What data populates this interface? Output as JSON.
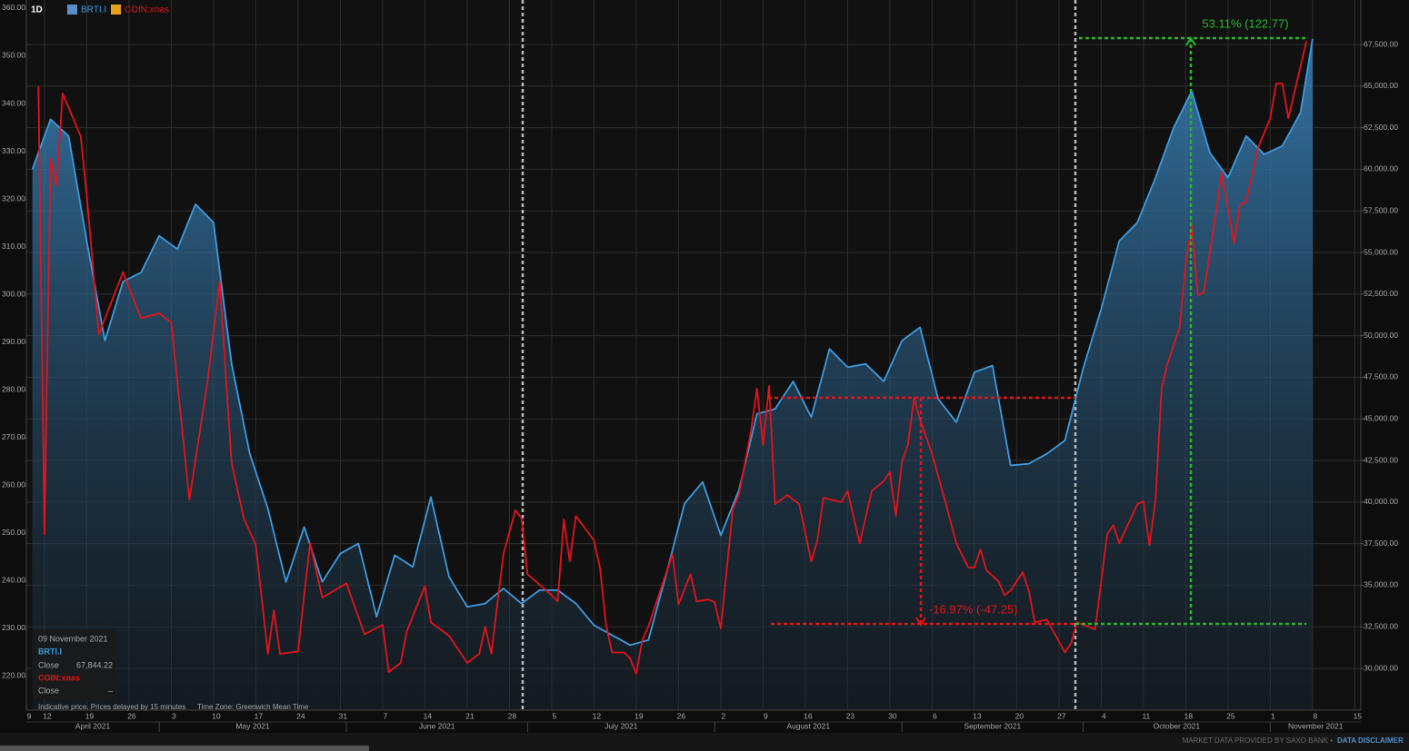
{
  "toolbar": {
    "interval": "1D"
  },
  "chart_data": {
    "type": "line",
    "xlim": [
      "2021-04-09",
      "2021-11-16"
    ],
    "ylim": [
      213,
      361.9
    ],
    "y2lim": [
      27490,
      70175
    ],
    "grid": true,
    "grid_axis": "y2",
    "yticks": [
      {
        "value": 220,
        "label": "220.00"
      },
      {
        "value": 230,
        "label": "230.00"
      },
      {
        "value": 240,
        "label": "240.00"
      },
      {
        "value": 250,
        "label": "250.00"
      },
      {
        "value": 260,
        "label": "260.00"
      },
      {
        "value": 270,
        "label": "270.00"
      },
      {
        "value": 280,
        "label": "280.00"
      },
      {
        "value": 290,
        "label": "290.00"
      },
      {
        "value": 300,
        "label": "300.00"
      },
      {
        "value": 310,
        "label": "310.00"
      },
      {
        "value": 320,
        "label": "320.00"
      },
      {
        "value": 330,
        "label": "330.00"
      },
      {
        "value": 340,
        "label": "340.00"
      },
      {
        "value": 350,
        "label": "350.00"
      },
      {
        "value": 360,
        "label": "360.00"
      }
    ],
    "y2ticks": [
      {
        "value": 30000,
        "label": "30,000.00"
      },
      {
        "value": 32500,
        "label": "32,500.00"
      },
      {
        "value": 35000,
        "label": "35,000.00"
      },
      {
        "value": 37500,
        "label": "37,500.00"
      },
      {
        "value": 40000,
        "label": "40,000.00"
      },
      {
        "value": 42500,
        "label": "42,500.00"
      },
      {
        "value": 45000,
        "label": "45,000.00"
      },
      {
        "value": 47500,
        "label": "47,500.00"
      },
      {
        "value": 50000,
        "label": "50,000.00"
      },
      {
        "value": 52500,
        "label": "52,500.00"
      },
      {
        "value": 55000,
        "label": "55,000.00"
      },
      {
        "value": 57500,
        "label": "57,500.00"
      },
      {
        "value": 60000,
        "label": "60,000.00"
      },
      {
        "value": 62500,
        "label": "62,500.00"
      },
      {
        "value": 65000,
        "label": "65,000.00"
      },
      {
        "value": 67500,
        "label": "67,500.00"
      }
    ],
    "xticks": [
      {
        "value": "2021-04-09",
        "label": "9"
      },
      {
        "value": "2021-04-12",
        "label": "12"
      },
      {
        "value": "2021-04-19",
        "label": "19"
      },
      {
        "value": "2021-04-26",
        "label": "26"
      },
      {
        "value": "2021-05-03",
        "label": "3"
      },
      {
        "value": "2021-05-10",
        "label": "10"
      },
      {
        "value": "2021-05-17",
        "label": "17"
      },
      {
        "value": "2021-05-24",
        "label": "24"
      },
      {
        "value": "2021-05-31",
        "label": "31"
      },
      {
        "value": "2021-06-07",
        "label": "7"
      },
      {
        "value": "2021-06-14",
        "label": "14"
      },
      {
        "value": "2021-06-21",
        "label": "21"
      },
      {
        "value": "2021-06-28",
        "label": "28"
      },
      {
        "value": "2021-07-05",
        "label": "5"
      },
      {
        "value": "2021-07-12",
        "label": "12"
      },
      {
        "value": "2021-07-19",
        "label": "19"
      },
      {
        "value": "2021-07-26",
        "label": "26"
      },
      {
        "value": "2021-08-02",
        "label": "2"
      },
      {
        "value": "2021-08-09",
        "label": "9"
      },
      {
        "value": "2021-08-16",
        "label": "16"
      },
      {
        "value": "2021-08-23",
        "label": "23"
      },
      {
        "value": "2021-08-30",
        "label": "30"
      },
      {
        "value": "2021-09-06",
        "label": "6"
      },
      {
        "value": "2021-09-13",
        "label": "13"
      },
      {
        "value": "2021-09-20",
        "label": "20"
      },
      {
        "value": "2021-09-27",
        "label": "27"
      },
      {
        "value": "2021-10-04",
        "label": "4"
      },
      {
        "value": "2021-10-11",
        "label": "11"
      },
      {
        "value": "2021-10-18",
        "label": "18"
      },
      {
        "value": "2021-10-25",
        "label": "25"
      },
      {
        "value": "2021-11-01",
        "label": "1"
      },
      {
        "value": "2021-11-08",
        "label": "8"
      },
      {
        "value": "2021-11-15",
        "label": "15"
      }
    ],
    "month_labels": [
      {
        "value": "2021-04",
        "label": "April 2021"
      },
      {
        "value": "2021-05",
        "label": "May 2021"
      },
      {
        "value": "2021-06",
        "label": "June 2021"
      },
      {
        "value": "2021-07",
        "label": "July 2021"
      },
      {
        "value": "2021-08",
        "label": "August 2021"
      },
      {
        "value": "2021-09",
        "label": "September 2021"
      },
      {
        "value": "2021-10",
        "label": "October 2021"
      },
      {
        "value": "2021-11",
        "label": "November 2021"
      }
    ],
    "series": [
      {
        "name": "BRTI.I",
        "color": "#3d9be0",
        "axis": "y2",
        "fill": "area",
        "x": [
          "2021-04-10",
          "2021-04-13",
          "2021-04-16",
          "2021-04-19",
          "2021-04-22",
          "2021-04-25",
          "2021-04-28",
          "2021-05-01",
          "2021-05-04",
          "2021-05-07",
          "2021-05-10",
          "2021-05-13",
          "2021-05-16",
          "2021-05-19",
          "2021-05-22",
          "2021-05-25",
          "2021-05-28",
          "2021-05-31",
          "2021-06-03",
          "2021-06-06",
          "2021-06-09",
          "2021-06-12",
          "2021-06-15",
          "2021-06-18",
          "2021-06-21",
          "2021-06-24",
          "2021-06-27",
          "2021-06-30",
          "2021-07-03",
          "2021-07-06",
          "2021-07-09",
          "2021-07-12",
          "2021-07-15",
          "2021-07-18",
          "2021-07-21",
          "2021-07-24",
          "2021-07-27",
          "2021-07-30",
          "2021-08-02",
          "2021-08-05",
          "2021-08-08",
          "2021-08-11",
          "2021-08-14",
          "2021-08-17",
          "2021-08-20",
          "2021-08-23",
          "2021-08-26",
          "2021-08-29",
          "2021-09-01",
          "2021-09-04",
          "2021-09-07",
          "2021-09-10",
          "2021-09-13",
          "2021-09-16",
          "2021-09-19",
          "2021-09-22",
          "2021-09-25",
          "2021-09-28",
          "2021-10-01",
          "2021-10-04",
          "2021-10-07",
          "2021-10-10",
          "2021-10-13",
          "2021-10-16",
          "2021-10-19",
          "2021-10-22",
          "2021-10-25",
          "2021-10-28",
          "2021-10-31",
          "2021-11-03",
          "2021-11-06",
          "2021-11-08"
        ],
        "values": [
          60000,
          63000,
          62000,
          55700,
          49700,
          53250,
          53800,
          56000,
          55200,
          57900,
          56800,
          48300,
          42900,
          39600,
          35200,
          38500,
          35200,
          36900,
          37500,
          33100,
          36800,
          36100,
          40300,
          35500,
          33700,
          33900,
          34800,
          33900,
          34700,
          34700,
          33900,
          32600,
          32000,
          31400,
          31700,
          35700,
          39900,
          41200,
          38000,
          40700,
          45300,
          45600,
          47250,
          45100,
          49200,
          48100,
          48300,
          47250,
          49700,
          50500,
          46200,
          44800,
          47800,
          48200,
          42200,
          42300,
          42900,
          43700,
          48000,
          51600,
          55700,
          56800,
          59500,
          62500,
          64700,
          61000,
          59500,
          62000,
          60900,
          61400,
          63400,
          67844
        ]
      },
      {
        "name": "COIN:xnas",
        "color": "#e3141b",
        "axis": "y",
        "x": [
          "2021-04-11",
          "2021-04-12",
          "2021-04-13",
          "2021-04-14",
          "2021-04-15",
          "2021-04-18",
          "2021-04-19",
          "2021-04-21",
          "2021-04-25",
          "2021-04-28",
          "2021-05-01",
          "2021-05-03",
          "2021-05-04",
          "2021-05-06",
          "2021-05-09",
          "2021-05-11",
          "2021-05-13",
          "2021-05-15",
          "2021-05-17",
          "2021-05-19",
          "2021-05-20",
          "2021-05-21",
          "2021-05-24",
          "2021-05-25",
          "2021-05-26",
          "2021-05-28",
          "2021-06-01",
          "2021-06-04",
          "2021-06-07",
          "2021-06-08",
          "2021-06-10",
          "2021-06-11",
          "2021-06-14",
          "2021-06-15",
          "2021-06-18",
          "2021-06-21",
          "2021-06-23",
          "2021-06-24",
          "2021-06-25",
          "2021-06-27",
          "2021-06-29",
          "2021-06-30",
          "2021-07-01",
          "2021-07-05",
          "2021-07-06",
          "2021-07-07",
          "2021-07-08",
          "2021-07-09",
          "2021-07-12",
          "2021-07-13",
          "2021-07-14",
          "2021-07-15",
          "2021-07-17",
          "2021-07-18",
          "2021-07-19",
          "2021-07-20",
          "2021-07-21",
          "2021-07-23",
          "2021-07-25",
          "2021-07-26",
          "2021-07-28",
          "2021-07-29",
          "2021-07-31",
          "2021-08-01",
          "2021-08-02",
          "2021-08-04",
          "2021-08-05",
          "2021-08-07",
          "2021-08-08",
          "2021-08-09",
          "2021-08-10",
          "2021-08-11",
          "2021-08-13",
          "2021-08-15",
          "2021-08-17",
          "2021-08-18",
          "2021-08-19",
          "2021-08-22",
          "2021-08-23",
          "2021-08-25",
          "2021-08-27",
          "2021-08-29",
          "2021-08-30",
          "2021-08-31",
          "2021-09-01",
          "2021-09-02",
          "2021-09-03",
          "2021-09-04",
          "2021-09-06",
          "2021-09-08",
          "2021-09-10",
          "2021-09-12",
          "2021-09-13",
          "2021-09-14",
          "2021-09-15",
          "2021-09-17",
          "2021-09-18",
          "2021-09-19",
          "2021-09-21",
          "2021-09-22",
          "2021-09-23",
          "2021-09-25",
          "2021-09-28",
          "2021-09-29",
          "2021-09-30",
          "2021-10-03",
          "2021-10-05",
          "2021-10-06",
          "2021-10-07",
          "2021-10-10",
          "2021-10-11",
          "2021-10-12",
          "2021-10-13",
          "2021-10-14",
          "2021-10-15",
          "2021-10-17",
          "2021-10-18",
          "2021-10-19",
          "2021-10-20",
          "2021-10-21",
          "2021-10-24",
          "2021-10-26",
          "2021-10-27",
          "2021-10-28",
          "2021-10-30",
          "2021-11-01",
          "2021-11-02",
          "2021-11-03",
          "2021-11-04",
          "2021-11-07"
        ],
        "values": [
          343.8,
          249.9,
          328.6,
          322.9,
          342.3,
          333.3,
          321.0,
          291.8,
          304.8,
          295.2,
          296.2,
          294.3,
          281.9,
          257.1,
          281.9,
          302.9,
          264.8,
          253.3,
          247.6,
          224.8,
          233.9,
          224.8,
          225.3,
          237.1,
          248.0,
          236.6,
          239.6,
          228.9,
          230.9,
          221.0,
          222.9,
          229.5,
          239.0,
          231.4,
          228.6,
          222.9,
          224.8,
          230.5,
          224.8,
          245.7,
          254.9,
          253.3,
          241.5,
          237.1,
          235.8,
          253.0,
          244.2,
          253.7,
          248.6,
          242.9,
          230.9,
          225.1,
          225.1,
          223.8,
          220.6,
          227.6,
          230.5,
          238.1,
          245.7,
          235.2,
          241.5,
          235.8,
          236.2,
          235.6,
          230.1,
          255.2,
          258.1,
          271.4,
          280.4,
          268.6,
          281.0,
          256.2,
          258.1,
          256.2,
          244.2,
          248.6,
          257.5,
          256.6,
          259.0,
          248.0,
          259.0,
          261.0,
          262.9,
          253.7,
          265.1,
          268.6,
          278.5,
          273.9,
          266.7,
          257.5,
          248.0,
          242.9,
          242.9,
          246.7,
          242.3,
          240.0,
          237.1,
          238.1,
          241.9,
          238.1,
          231.4,
          232.0,
          225.1,
          227.0,
          231.4,
          229.9,
          249.9,
          251.8,
          248.0,
          256.2,
          256.8,
          247.6,
          257.1,
          280.4,
          285.7,
          293.3,
          306.7,
          314.7,
          300.0,
          300.6,
          325.7,
          310.9,
          319.0,
          319.6,
          331.0,
          337.1,
          344.4,
          344.4,
          337.1,
          353.3
        ]
      }
    ],
    "annotations": [
      {
        "text": "53.11% (122.77)"
      },
      {
        "text": "-16.97% (-47.25)"
      }
    ]
  },
  "info_panel": {
    "date": "09 November 2021",
    "rows": [
      {
        "label": "Close",
        "value": "67,844.22"
      },
      {
        "label": "Close",
        "value": "–"
      }
    ],
    "note": "Indicative price. Prices delayed by 15 minutes",
    "timezone": "Time Zone: Greenwich Mean Time"
  },
  "footer": {
    "provider": "MARKET DATA PROVIDED BY SAXO BANK •",
    "disclaimer": "DATA DISCLAIMER"
  }
}
